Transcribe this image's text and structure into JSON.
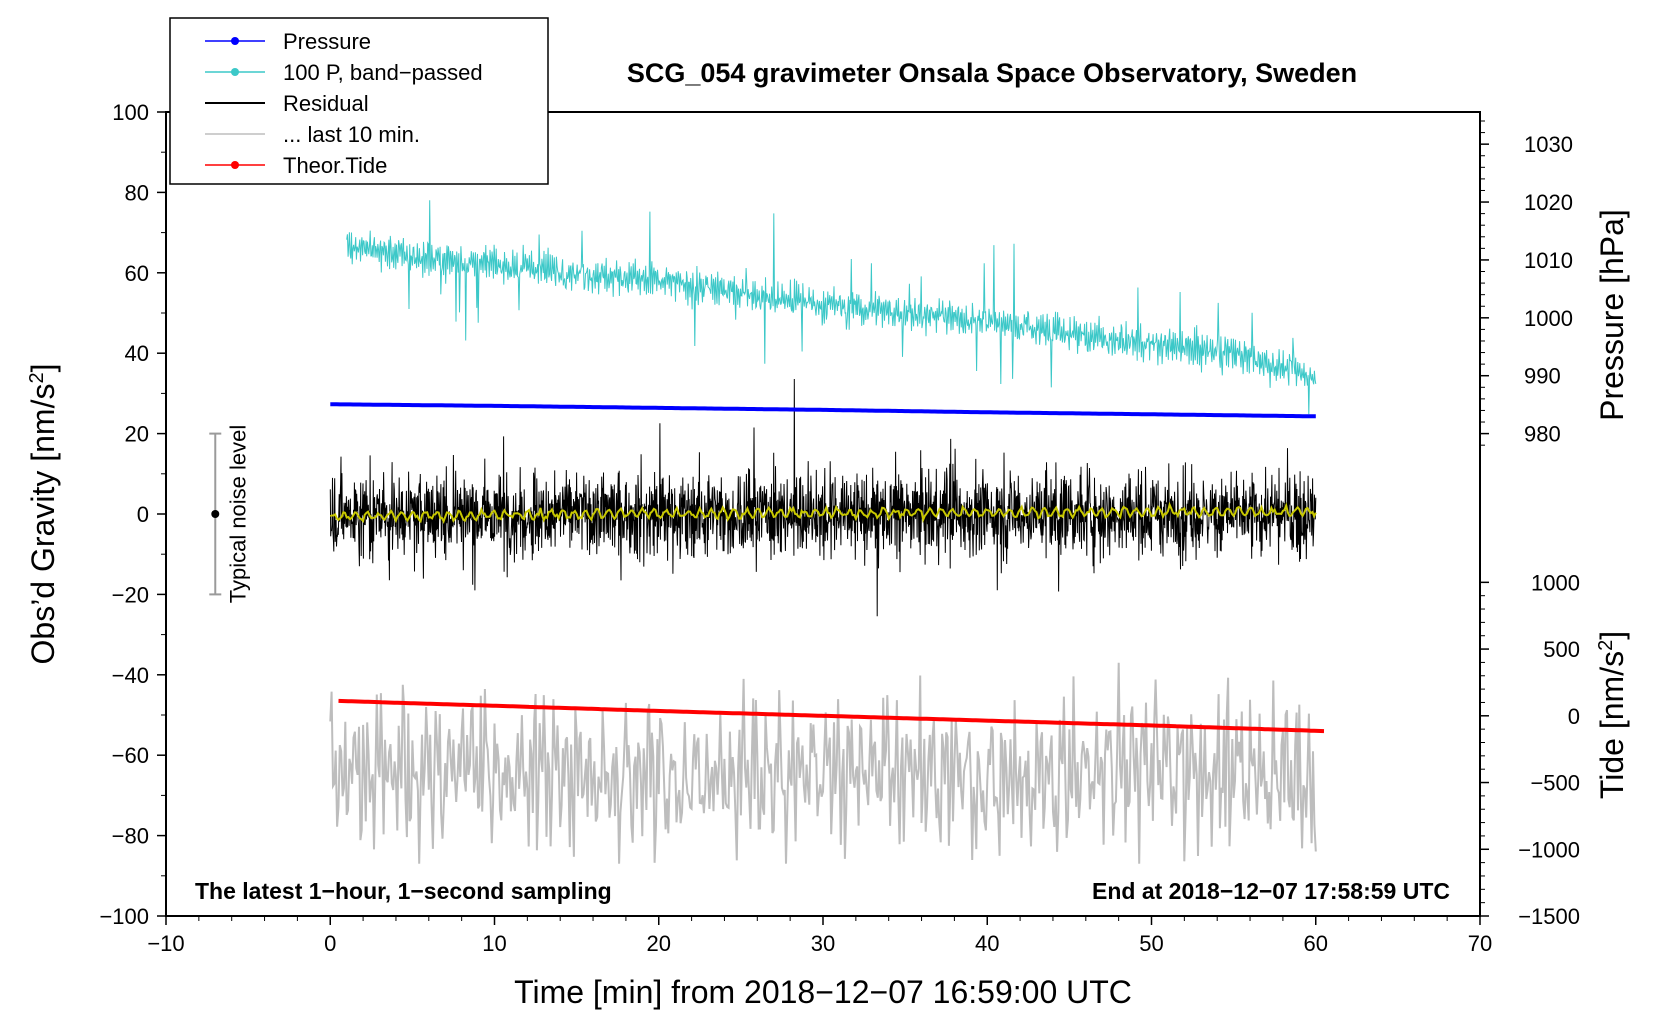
{
  "chart_data": {
    "type": "line",
    "title": "SCG_054 gravimeter Onsala Space Observatory, Sweden",
    "xlabel": "Time [min] from 2018−12−07 16:59:00 UTC",
    "ylabel_left_main": "Obs’d Gravity [nm/s",
    "ylabel_left_sup": "2",
    "ylabel_left_end": "]",
    "ylabel_right_pressure": "Pressure [hPa]",
    "ylabel_right_tide_main": "Tide [nm/s",
    "ylabel_right_tide_sup": "2",
    "ylabel_right_tide_end": "]",
    "xlim": [
      -10,
      70
    ],
    "ylim": [
      -100,
      100
    ],
    "xticks": [
      -10,
      0,
      10,
      20,
      30,
      40,
      50,
      60,
      70
    ],
    "xtick_labels": [
      "−10",
      "0",
      "10",
      "20",
      "30",
      "40",
      "50",
      "60",
      "70"
    ],
    "yticks": [
      -100,
      -80,
      -60,
      -40,
      -20,
      0,
      20,
      40,
      60,
      80,
      100
    ],
    "ytick_labels": [
      "−100",
      "−80",
      "−60",
      "−40",
      "−20",
      "0",
      "20",
      "40",
      "60",
      "80",
      "100"
    ],
    "pressure_axis": {
      "ticks": [
        980,
        990,
        1000,
        1010,
        1020,
        1030
      ],
      "tick_labels": [
        "980",
        "990",
        "1000",
        "1010",
        "1020",
        "1030"
      ],
      "grav_equiv_at_980": 20,
      "grav_equiv_at_1030": 92
    },
    "tide_axis": {
      "ticks": [
        -1500,
        -1000,
        -500,
        0,
        500,
        1000
      ],
      "tick_labels": [
        "−1500",
        "−1000",
        "−500",
        "0",
        "500",
        "1000"
      ],
      "grav_equiv_at_neg1500": -100,
      "grav_equiv_at_1000": -17
    },
    "legend": [
      {
        "label": "Pressure",
        "color": "#0000ff",
        "marker": true
      },
      {
        "label": "100 P, band−passed",
        "color": "#3cc8c8",
        "marker": true
      },
      {
        "label": "Residual",
        "color": "#000000",
        "marker": false
      },
      {
        "label": "... last 10 min.",
        "color": "#bdbdbd",
        "marker": false
      },
      {
        "label": "Theor.Tide",
        "color": "#ff0000",
        "marker": true
      }
    ],
    "series": [
      {
        "name": "Pressure",
        "color": "#0000ff",
        "x": [
          0,
          10,
          20,
          30,
          40,
          50,
          60
        ],
        "y": [
          27.3,
          26.9,
          26.4,
          25.9,
          25.3,
          24.8,
          24.3
        ]
      },
      {
        "name": "100 P, band−passed",
        "color": "#3cc8c8",
        "x": [
          1,
          5,
          10,
          15,
          20,
          25,
          30,
          35,
          40,
          45,
          50,
          55,
          60
        ],
        "y": [
          67,
          64,
          62,
          60,
          58,
          55,
          52,
          50,
          48,
          45,
          42,
          40,
          34
        ]
      },
      {
        "name": "Residual",
        "color": "#000000",
        "x": [
          0,
          10,
          20,
          30,
          40,
          50,
          60
        ],
        "y": [
          0,
          0,
          0,
          0,
          0,
          0,
          0
        ],
        "range": [
          -30,
          30
        ]
      },
      {
        "name": "Residual smoothed",
        "color": "#c8c800",
        "x": [
          0,
          10,
          20,
          30,
          40,
          50,
          60
        ],
        "y": [
          -0.6,
          -0.3,
          0.2,
          0.2,
          0.4,
          0.5,
          0.6
        ]
      },
      {
        "name": "... last 10 min.",
        "color": "#bdbdbd",
        "x": [
          0,
          10,
          20,
          30,
          40,
          50,
          60
        ],
        "y": [
          -65,
          -63,
          -66,
          -64,
          -67,
          -62,
          -65
        ],
        "range": [
          -87,
          -37
        ]
      },
      {
        "name": "Theor.Tide",
        "color": "#ff0000",
        "x": [
          0.5,
          10,
          20,
          30,
          40,
          50,
          60.5
        ],
        "y": [
          -46.5,
          -47.7,
          -49.0,
          -50.2,
          -51.4,
          -52.6,
          -54.0
        ]
      }
    ],
    "noise_bar": {
      "label": "Typical noise level",
      "x": -7,
      "center": 0,
      "low": -20,
      "high": 20
    },
    "annotation_left": "The latest 1−hour, 1−second sampling",
    "annotation_right": "End at 2018−12−07 17:58:59 UTC"
  }
}
